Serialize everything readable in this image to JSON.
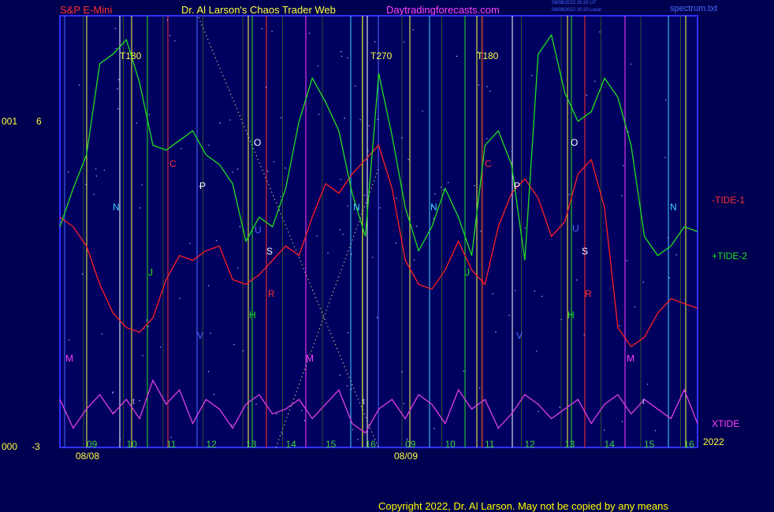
{
  "header": {
    "instrument": "S&P E-Mini",
    "title": "Dr. Al Larson's Chaos Trader Web",
    "site": "Daytradingforecasts.com",
    "timestamp_line1": "08/08/2022 20:20 UT",
    "timestamp_line2": "08/08/2022 20:20 Local",
    "filename": "spectrum.txt"
  },
  "left_axis": {
    "top_code": "001",
    "top_value": "6",
    "bottom_code": "000",
    "bottom_value": "-3"
  },
  "labels": {
    "tide1": "-TIDE-1",
    "tide2": "+TIDE-2",
    "xtide": "XTIDE",
    "year": "2022",
    "copyright": "Copyright 2022, Dr. Al Larson. May not be copied by any means"
  },
  "colors": {
    "background": "#000050",
    "plot_background": "#000060",
    "tide1": "#ff2020",
    "tide2": "#20e020",
    "xtide": "#e040e0",
    "header_red": "#ff3030",
    "header_yellow": "#ffff40",
    "header_magenta": "#ff40ff",
    "axis_blue": "#3030ff"
  },
  "chart_data": {
    "type": "line",
    "title": "S&P E-Mini",
    "ylim": [
      -3,
      6
    ],
    "hour_ticks": [
      "09",
      "10",
      "11",
      "12",
      "13",
      "14",
      "15",
      "16",
      "09",
      "10",
      "11",
      "12",
      "13",
      "14",
      "15",
      "16"
    ],
    "date_labels": [
      "08/08",
      "08/09"
    ],
    "x_hours": [
      0,
      1,
      2,
      3,
      4,
      5,
      6,
      7,
      8,
      9,
      10,
      11,
      12,
      13,
      14,
      15,
      16,
      17,
      18,
      19,
      20,
      21,
      22,
      23,
      24,
      25,
      26,
      27,
      28,
      29,
      30,
      31,
      32,
      33,
      34,
      35,
      36,
      37,
      38,
      39,
      40,
      41,
      42,
      43,
      44,
      45,
      46,
      47,
      48
    ],
    "series": [
      {
        "name": "-TIDE-1",
        "values": [
          1.8,
          1.6,
          1.2,
          0.4,
          -0.2,
          -0.5,
          -0.6,
          -0.3,
          0.5,
          1.0,
          0.9,
          1.1,
          1.2,
          0.5,
          0.4,
          0.6,
          0.9,
          1.2,
          1.0,
          1.8,
          2.5,
          2.3,
          2.7,
          3.0,
          3.3,
          2.4,
          0.9,
          0.4,
          0.3,
          0.7,
          1.3,
          0.7,
          0.4,
          1.6,
          2.3,
          2.6,
          2.2,
          1.4,
          1.7,
          2.7,
          3.0,
          2.0,
          -0.5,
          -0.9,
          -0.7,
          -0.2,
          0.1,
          0.0,
          -0.1
        ]
      },
      {
        "name": "+TIDE-2",
        "values": [
          1.6,
          2.4,
          3.1,
          5.0,
          5.2,
          5.5,
          4.6,
          3.3,
          3.2,
          3.4,
          3.6,
          3.1,
          2.9,
          2.5,
          1.3,
          1.8,
          1.6,
          2.4,
          3.8,
          4.7,
          4.2,
          3.6,
          2.3,
          1.4,
          4.8,
          3.5,
          2.0,
          1.1,
          1.6,
          2.4,
          1.8,
          1.0,
          3.3,
          3.6,
          2.9,
          0.9,
          5.2,
          5.6,
          4.4,
          3.8,
          4.0,
          4.7,
          4.3,
          3.3,
          1.4,
          1.0,
          1.2,
          1.6,
          1.5
        ]
      },
      {
        "name": "XTIDE",
        "values": [
          -2.0,
          -2.6,
          -2.2,
          -1.9,
          -2.3,
          -2.0,
          -2.4,
          -1.6,
          -2.1,
          -1.8,
          -2.5,
          -2.0,
          -2.2,
          -2.6,
          -2.1,
          -1.9,
          -2.3,
          -2.2,
          -2.0,
          -2.4,
          -2.1,
          -1.8,
          -2.5,
          -2.7,
          -2.2,
          -2.0,
          -2.4,
          -1.9,
          -2.1,
          -2.5,
          -1.8,
          -2.2,
          -2.0,
          -2.6,
          -2.3,
          -1.9,
          -2.1,
          -2.4,
          -2.2,
          -2.0,
          -2.5,
          -2.1,
          -1.9,
          -2.3,
          -2.0,
          -2.2,
          -2.4,
          -1.8,
          -2.5
        ]
      }
    ],
    "reference_line": 6,
    "vertical_markers": [
      {
        "label": "T180",
        "color": "#ffff40"
      },
      {
        "label": "T270",
        "color": "#ffff40"
      },
      {
        "label": "T180",
        "color": "#ffff40"
      }
    ],
    "planet_letters": [
      "N",
      "J",
      "V",
      "M",
      "C",
      "P",
      "O",
      "U",
      "S",
      "R",
      "H",
      "M",
      "N",
      "N",
      "J",
      "V",
      "C",
      "P",
      "O",
      "U",
      "S",
      "R",
      "H",
      "M",
      "N"
    ]
  }
}
